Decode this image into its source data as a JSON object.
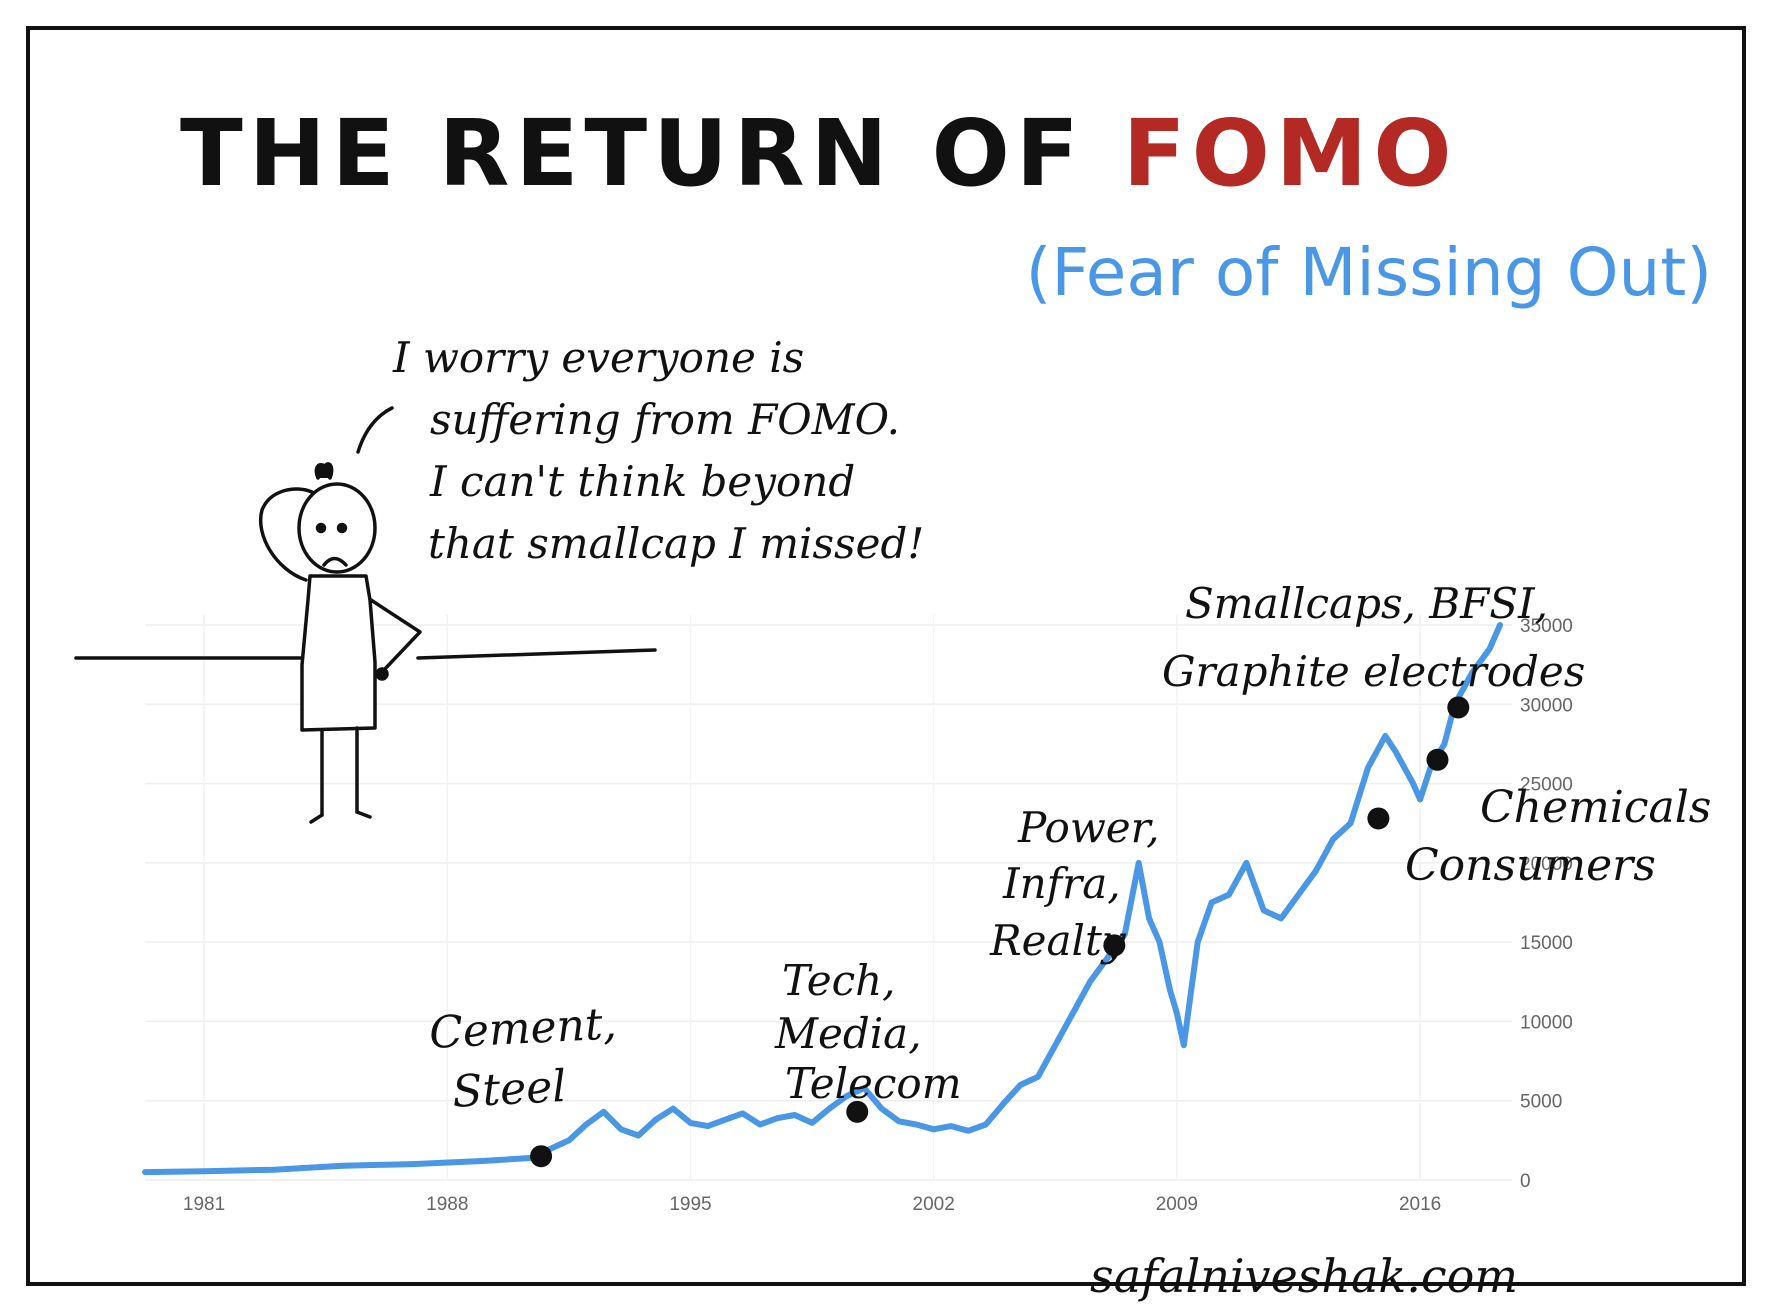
{
  "title": {
    "prefix": "THE RETURN OF ",
    "highlight": "FOMO",
    "subtitle": "(Fear of Missing Out)"
  },
  "speech_bubble": {
    "lines": [
      "I worry everyone is",
      "suffering from FOMO.",
      "I can't think beyond",
      "that smallcap I missed!"
    ]
  },
  "credit": "safalniveshak.com",
  "colors": {
    "title": "#111111",
    "highlight": "#b22a23",
    "line": "#4a97e6",
    "ink": "#111111"
  },
  "chart_data": {
    "type": "line",
    "x_ticks": [
      "1981",
      "1988",
      "1995",
      "2002",
      "2009",
      "2016"
    ],
    "y_ticks": [
      "0",
      "5000",
      "10000",
      "15000",
      "20000",
      "25000",
      "30000",
      "35000"
    ],
    "ylim": [
      0,
      35000
    ],
    "xlim": [
      1979.3,
      2018.3
    ],
    "grid": true,
    "series": [
      {
        "x": [
          1979.3,
          1981,
          1983,
          1985,
          1987,
          1989,
          1990.5,
          1991,
          1991.5,
          1992,
          1992.5,
          1993,
          1993.5,
          1994,
          1994.5,
          1995,
          1995.5,
          1996,
          1996.5,
          1997,
          1997.5,
          1998,
          1998.5,
          1999,
          1999.5,
          2000,
          2000.5,
          2001,
          2001.5,
          2002,
          2002.5,
          2003,
          2003.5,
          2004,
          2004.5,
          2005,
          2005.5,
          2006,
          2006.5,
          2007,
          2007.5,
          2007.9,
          2008.2,
          2008.5,
          2008.8,
          2009,
          2009.2,
          2009.6,
          2010,
          2010.5,
          2011,
          2011.5,
          2012,
          2012.5,
          2013,
          2013.5,
          2014,
          2014.5,
          2015,
          2015.3,
          2015.8,
          2016,
          2016.3,
          2016.7,
          2017,
          2017.5,
          2018,
          2018.3
        ],
        "y": [
          500,
          550,
          650,
          900,
          1000,
          1200,
          1400,
          2000,
          2500,
          3500,
          4300,
          3200,
          2800,
          3800,
          4500,
          3600,
          3400,
          3800,
          4200,
          3500,
          3900,
          4100,
          3600,
          4500,
          5300,
          5800,
          4500,
          3700,
          3500,
          3200,
          3400,
          3100,
          3500,
          4800,
          6000,
          6500,
          8500,
          10500,
          12500,
          14000,
          15500,
          20000,
          16500,
          15000,
          12000,
          10500,
          8500,
          15000,
          17500,
          18000,
          20000,
          17000,
          16500,
          18000,
          19500,
          21500,
          22500,
          26000,
          28000,
          27000,
          25000,
          24000,
          26000,
          27500,
          30000,
          32000,
          33500,
          35000
        ]
      }
    ],
    "annotations": [
      {
        "text": "Cement, Steel",
        "x": 1990.7,
        "y": 1500
      },
      {
        "text": "Tech, Media, Telecom",
        "x": 1999.8,
        "y": 4300
      },
      {
        "text": "Power, Infra, Realty",
        "x": 2007.2,
        "y": 14800
      },
      {
        "text": "Consumers",
        "x": 2014.8,
        "y": 22800
      },
      {
        "text": "Chemicals",
        "x": 2016.5,
        "y": 26500
      },
      {
        "text": "Smallcaps, BFSI, Graphite electrodes",
        "x": 2017.1,
        "y": 29800
      }
    ]
  }
}
